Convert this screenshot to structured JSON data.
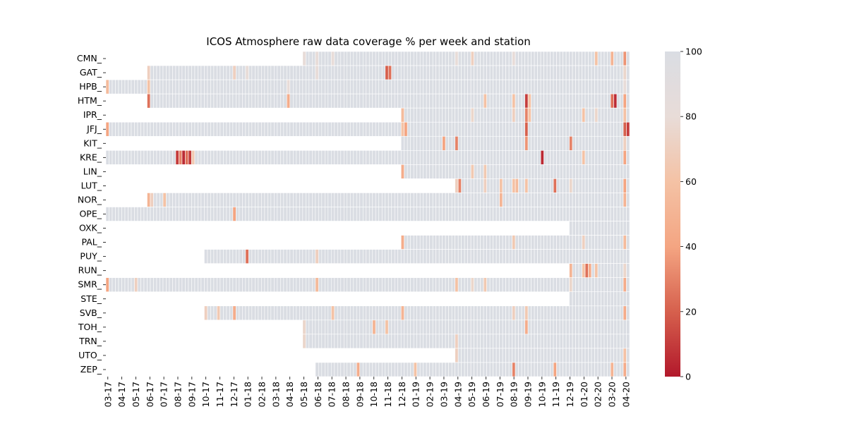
{
  "chart_data": {
    "type": "heatmap",
    "title": "ICOS Atmosphere raw data coverage % per week and station",
    "xlabel": "",
    "ylabel": "",
    "stations": [
      "CMN_",
      "GAT_",
      "HPB_",
      "HTM_",
      "IPR_",
      "JFJ_",
      "KIT_",
      "KRE_",
      "LIN_",
      "LUT_",
      "NOR_",
      "OPE_",
      "OXK_",
      "PAL_",
      "PUY_",
      "RUN_",
      "SMR_",
      "STE_",
      "SVB_",
      "TOH_",
      "TRN_",
      "UTO_",
      "ZEP_"
    ],
    "x_tick_labels": [
      "03-17",
      "04-17",
      "05-17",
      "06-17",
      "07-17",
      "08-17",
      "09-17",
      "10-17",
      "11-17",
      "12-17",
      "01-18",
      "02-18",
      "03-18",
      "04-18",
      "05-18",
      "06-18",
      "07-18",
      "08-18",
      "09-18",
      "10-18",
      "11-18",
      "12-18",
      "01-19",
      "02-19",
      "03-19",
      "04-19",
      "05-19",
      "06-19",
      "07-19",
      "08-19",
      "09-19",
      "10-19",
      "11-19",
      "12-19",
      "01-20",
      "02-20",
      "03-20",
      "04-20"
    ],
    "week_count": 165,
    "first_week": "2017-03",
    "last_week": "2020-04",
    "colorbar": {
      "min": 0,
      "max": 100,
      "ticks": [
        "0",
        "20",
        "40",
        "60",
        "80",
        "100"
      ],
      "colormap": "RdBu (red = 0, light grey = 100)"
    },
    "coverage_start_month": {
      "CMN_": "05-18",
      "GAT_": "06-17",
      "HPB_": "03-17",
      "HTM_": "06-17",
      "IPR_": "12-18",
      "JFJ_": "03-17",
      "KIT_": "12-18",
      "KRE_": "03-17",
      "LIN_": "12-18",
      "LUT_": "04-19",
      "NOR_": "06-17",
      "OPE_": "03-17",
      "OXK_": "12-19",
      "PAL_": "12-18",
      "PUY_": "10-17",
      "RUN_": "12-19",
      "SMR_": "03-17",
      "STE_": "12-19",
      "SVB_": "10-17",
      "TOH_": "05-18",
      "TRN_": "05-18",
      "UTO_": "04-19",
      "ZEP_": "06-18"
    },
    "low_coverage_weeks": {
      "CMN_": [
        [
          "05-18",
          80
        ],
        [
          "06-18",
          80
        ],
        [
          "07-18",
          80
        ],
        [
          "04-19",
          80
        ],
        [
          "05-19",
          70
        ],
        [
          "08-19",
          80
        ],
        [
          "02-20",
          60
        ],
        [
          "03-20",
          50
        ],
        [
          "04-20",
          35
        ]
      ],
      "GAT_": [
        [
          "06-17",
          70
        ],
        [
          "12-17",
          70
        ],
        [
          "01-18",
          80
        ],
        [
          "06-18",
          80
        ],
        [
          "11-18",
          20
        ],
        [
          "11-18",
          25
        ],
        [
          "04-20",
          75
        ]
      ],
      "HPB_": [
        [
          "03-17",
          55
        ],
        [
          "06-17",
          60
        ],
        [
          "04-18",
          80
        ],
        [
          "04-20",
          80
        ]
      ],
      "HTM_": [
        [
          "06-17",
          25
        ],
        [
          "04-18",
          45
        ],
        [
          "06-19",
          60
        ],
        [
          "08-19",
          60
        ],
        [
          "09-19",
          10
        ],
        [
          "09-19",
          60
        ],
        [
          "03-20",
          25
        ],
        [
          "03-20",
          5
        ],
        [
          "04-20",
          40
        ]
      ],
      "IPR_": [
        [
          "12-18",
          55
        ],
        [
          "05-19",
          75
        ],
        [
          "08-19",
          70
        ],
        [
          "09-19",
          30
        ],
        [
          "09-19",
          60
        ],
        [
          "01-20",
          60
        ],
        [
          "02-20",
          75
        ],
        [
          "04-20",
          60
        ]
      ],
      "JFJ_": [
        [
          "03-17",
          40
        ],
        [
          "12-18",
          60
        ],
        [
          "12-18",
          40
        ],
        [
          "09-19",
          20
        ],
        [
          "04-20",
          20
        ],
        [
          "04-20",
          10
        ],
        [
          "04-20",
          15
        ]
      ],
      "KIT_": [
        [
          "03-19",
          40
        ],
        [
          "04-19",
          30
        ],
        [
          "09-19",
          35
        ],
        [
          "12-19",
          30
        ],
        [
          "04-20",
          70
        ]
      ],
      "KRE_": [
        [
          "08-17",
          10
        ],
        [
          "08-17",
          30
        ],
        [
          "08-17",
          5
        ],
        [
          "08-17",
          25
        ],
        [
          "09-17",
          10
        ],
        [
          "09-17",
          65
        ],
        [
          "10-19",
          5
        ],
        [
          "01-20",
          60
        ],
        [
          "04-20",
          40
        ]
      ],
      "LIN_": [
        [
          "12-18",
          45
        ],
        [
          "05-19",
          65
        ],
        [
          "06-19",
          65
        ]
      ],
      "LUT_": [
        [
          "04-19",
          70
        ],
        [
          "04-19",
          30
        ],
        [
          "06-19",
          70
        ],
        [
          "07-19",
          60
        ],
        [
          "08-19",
          60
        ],
        [
          "08-19",
          55
        ],
        [
          "09-19",
          60
        ],
        [
          "11-19",
          25
        ],
        [
          "12-19",
          75
        ],
        [
          "04-20",
          40
        ]
      ],
      "NOR_": [
        [
          "06-17",
          50
        ],
        [
          "06-17",
          70
        ],
        [
          "07-17",
          60
        ],
        [
          "07-19",
          50
        ],
        [
          "04-20",
          50
        ]
      ],
      "OPE_": [
        [
          "12-17",
          40
        ]
      ],
      "OXK_": [],
      "PAL_": [
        [
          "12-18",
          45
        ],
        [
          "08-19",
          65
        ],
        [
          "01-20",
          70
        ],
        [
          "04-20",
          55
        ]
      ],
      "PUY_": [
        [
          "01-18",
          25
        ],
        [
          "06-18",
          70
        ]
      ],
      "RUN_": [
        [
          "12-19",
          50
        ],
        [
          "01-20",
          60
        ],
        [
          "01-20",
          25
        ],
        [
          "01-20",
          45
        ],
        [
          "02-20",
          60
        ],
        [
          "04-20",
          75
        ]
      ],
      "SMR_": [
        [
          "03-17",
          40
        ],
        [
          "05-17",
          70
        ],
        [
          "06-18",
          55
        ],
        [
          "04-19",
          60
        ],
        [
          "05-19",
          75
        ],
        [
          "06-19",
          65
        ],
        [
          "12-19",
          75
        ],
        [
          "04-20",
          45
        ]
      ],
      "STE_": [],
      "SVB_": [
        [
          "10-17",
          70
        ],
        [
          "11-17",
          65
        ],
        [
          "12-17",
          45
        ],
        [
          "07-18",
          60
        ],
        [
          "12-18",
          50
        ],
        [
          "08-19",
          70
        ],
        [
          "09-19",
          65
        ],
        [
          "04-20",
          45
        ]
      ],
      "TOH_": [
        [
          "05-18",
          75
        ],
        [
          "09-19",
          45
        ],
        [
          "10-18",
          50
        ],
        [
          "11-18",
          60
        ]
      ],
      "TRN_": [
        [
          "05-18",
          75
        ],
        [
          "04-19",
          70
        ]
      ],
      "UTO_": [
        [
          "04-19",
          70
        ],
        [
          "04-20",
          60
        ]
      ],
      "ZEP_": [
        [
          "09-18",
          45
        ],
        [
          "01-19",
          60
        ],
        [
          "08-19",
          30
        ],
        [
          "11-19",
          40
        ],
        [
          "03-20",
          50
        ],
        [
          "04-20",
          45
        ]
      ]
    }
  }
}
